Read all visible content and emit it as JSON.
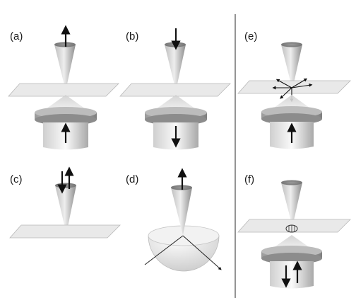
{
  "panels": [
    {
      "id": "a",
      "label": "(a)"
    },
    {
      "id": "b",
      "label": "(b)"
    },
    {
      "id": "c",
      "label": "(c)"
    },
    {
      "id": "d",
      "label": "(d)"
    },
    {
      "id": "e",
      "label": "(e)"
    },
    {
      "id": "f",
      "label": "(f)"
    }
  ],
  "colors": {
    "cone_light": "#d8d8d8",
    "cone_dark": "#8a8a8a",
    "plane_fill": "#e9e9e9",
    "plane_stroke": "#b8b8b8",
    "lens_fill": "#b0b0b0",
    "arrow": "#111111",
    "divider": "#666666"
  }
}
